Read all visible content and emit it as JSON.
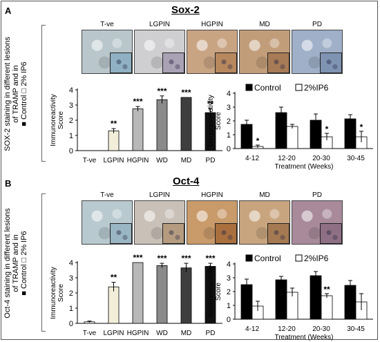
{
  "panels": [
    {
      "letter": "A",
      "title": "Sox-2",
      "side_label_line1": "SOX-2 staining in different lesions",
      "side_label_line2": "of TRAMP and in",
      "side_label_line3": "■ Control □ 2% IP6",
      "images": [
        {
          "label": "T-ve",
          "bg": "#b9c7cc",
          "inset": "#8fb1c3",
          "icon": "tissue-tve-icon"
        },
        {
          "label": "LGPIN",
          "bg": "#cfcfd2",
          "inset": "#a9a2b5",
          "icon": "tissue-lgpin-icon"
        },
        {
          "label": "HGPIN",
          "bg": "#c9a483",
          "inset": "#b7875e",
          "icon": "tissue-hgpin-icon"
        },
        {
          "label": "MD",
          "bg": "#c29d7a",
          "inset": "#a77b55",
          "icon": "tissue-md-icon"
        },
        {
          "label": "PD",
          "bg": "#9fb0c8",
          "inset": "#7f93b3",
          "icon": "tissue-pd-icon"
        }
      ]
    },
    {
      "letter": "B",
      "title": "Oct-4",
      "side_label_line1": "Oct-4 staining in different lesions",
      "side_label_line2": "of TRAMP and in",
      "side_label_line3": "■ Control □ 2% IP6",
      "images": [
        {
          "label": "T-ve",
          "bg": "#b8c9cf",
          "inset": "#9ab5c3",
          "icon": "tissue-tve-icon"
        },
        {
          "label": "LGPIN",
          "bg": "#c9c0b7",
          "inset": "#b59c80",
          "icon": "tissue-lgpin-icon"
        },
        {
          "label": "HGPIN",
          "bg": "#c99a6a",
          "inset": "#a96f3e",
          "icon": "tissue-hgpin-icon"
        },
        {
          "label": "MD",
          "bg": "#c8a57e",
          "inset": "#a57a52",
          "icon": "tissue-md-icon"
        },
        {
          "label": "PD",
          "bg": "#a88a9a",
          "inset": "#8e6f84",
          "icon": "tissue-pd-icon"
        }
      ]
    }
  ],
  "chart_data": [
    {
      "type": "bar",
      "ylabel": "Immunoreactivity Score",
      "categories": [
        "T-ve",
        "LGPIN",
        "HGPIN",
        "WD",
        "MD",
        "PD"
      ],
      "values": [
        0,
        1.3,
        2.75,
        3.35,
        3.5,
        2.5
      ],
      "errors": [
        0,
        0.15,
        0.15,
        0.25,
        0,
        0.25
      ],
      "colors": [
        "#ffffff",
        "#f2eed9",
        "#b8b8b8",
        "#8a8a8a",
        "#3f3f3f",
        "#111111"
      ],
      "annotations": [
        "",
        "**",
        "***",
        "***",
        "***",
        "**"
      ],
      "ylim": [
        0,
        4
      ],
      "yticks": [
        "0",
        "1",
        "2",
        "3",
        "4"
      ]
    },
    {
      "type": "bar",
      "ylabel": "Immunoreactivity Score",
      "xlabel": "Treatment (Weeks)",
      "categories": [
        "4-12",
        "12-20",
        "20-30",
        "30-45"
      ],
      "legend": [
        "Control",
        "2%IP6"
      ],
      "series": [
        {
          "name": "Control",
          "values": [
            1.75,
            2.6,
            2.05,
            2.15
          ],
          "errors": [
            0.3,
            0.4,
            0.45,
            0.3
          ],
          "color": "#000000"
        },
        {
          "name": "2%IP6",
          "values": [
            0.15,
            1.6,
            0.85,
            0.85
          ],
          "errors": [
            0.1,
            0.15,
            0.25,
            0.4
          ],
          "color": "#ffffff",
          "annotations": [
            "*",
            "",
            "*",
            "*"
          ]
        }
      ],
      "ylim": [
        0,
        4
      ],
      "yticks": [
        "0",
        "1",
        "2",
        "3",
        "4"
      ]
    },
    {
      "type": "bar",
      "ylabel": "Immunoreactivity Score",
      "categories": [
        "T-ve",
        "LGPIN",
        "HGPIN",
        "WD",
        "MD",
        "PD"
      ],
      "values": [
        0.1,
        2.4,
        4.0,
        3.8,
        3.65,
        3.75
      ],
      "errors": [
        0.05,
        0.3,
        0,
        0.15,
        0.3,
        0.2
      ],
      "colors": [
        "#ffffff",
        "#f2eed9",
        "#b8b8b8",
        "#8a8a8a",
        "#3f3f3f",
        "#111111"
      ],
      "annotations": [
        "",
        "**",
        "***",
        "***",
        "***",
        "***"
      ],
      "ylim": [
        0,
        4
      ],
      "yticks": [
        "0",
        "1",
        "2",
        "3",
        "4"
      ]
    },
    {
      "type": "bar",
      "ylabel": "Immunoreactivity Score",
      "xlabel": "Treatment (Weeks)",
      "categories": [
        "4-12",
        "12-20",
        "20-30",
        "30-45"
      ],
      "legend": [
        "Control",
        "2%IP6"
      ],
      "series": [
        {
          "name": "Control",
          "values": [
            2.5,
            2.85,
            3.15,
            2.45
          ],
          "errors": [
            0.4,
            0.25,
            0.3,
            0.35
          ],
          "color": "#000000"
        },
        {
          "name": "2%IP6",
          "values": [
            0.95,
            1.95,
            1.7,
            1.25
          ],
          "errors": [
            0.35,
            0.3,
            0.15,
            0.6
          ],
          "color": "#ffffff",
          "annotations": [
            "",
            "",
            "**",
            ""
          ]
        }
      ],
      "ylim": [
        0,
        4
      ],
      "yticks": [
        "0",
        "1",
        "2",
        "3",
        "4"
      ]
    }
  ]
}
